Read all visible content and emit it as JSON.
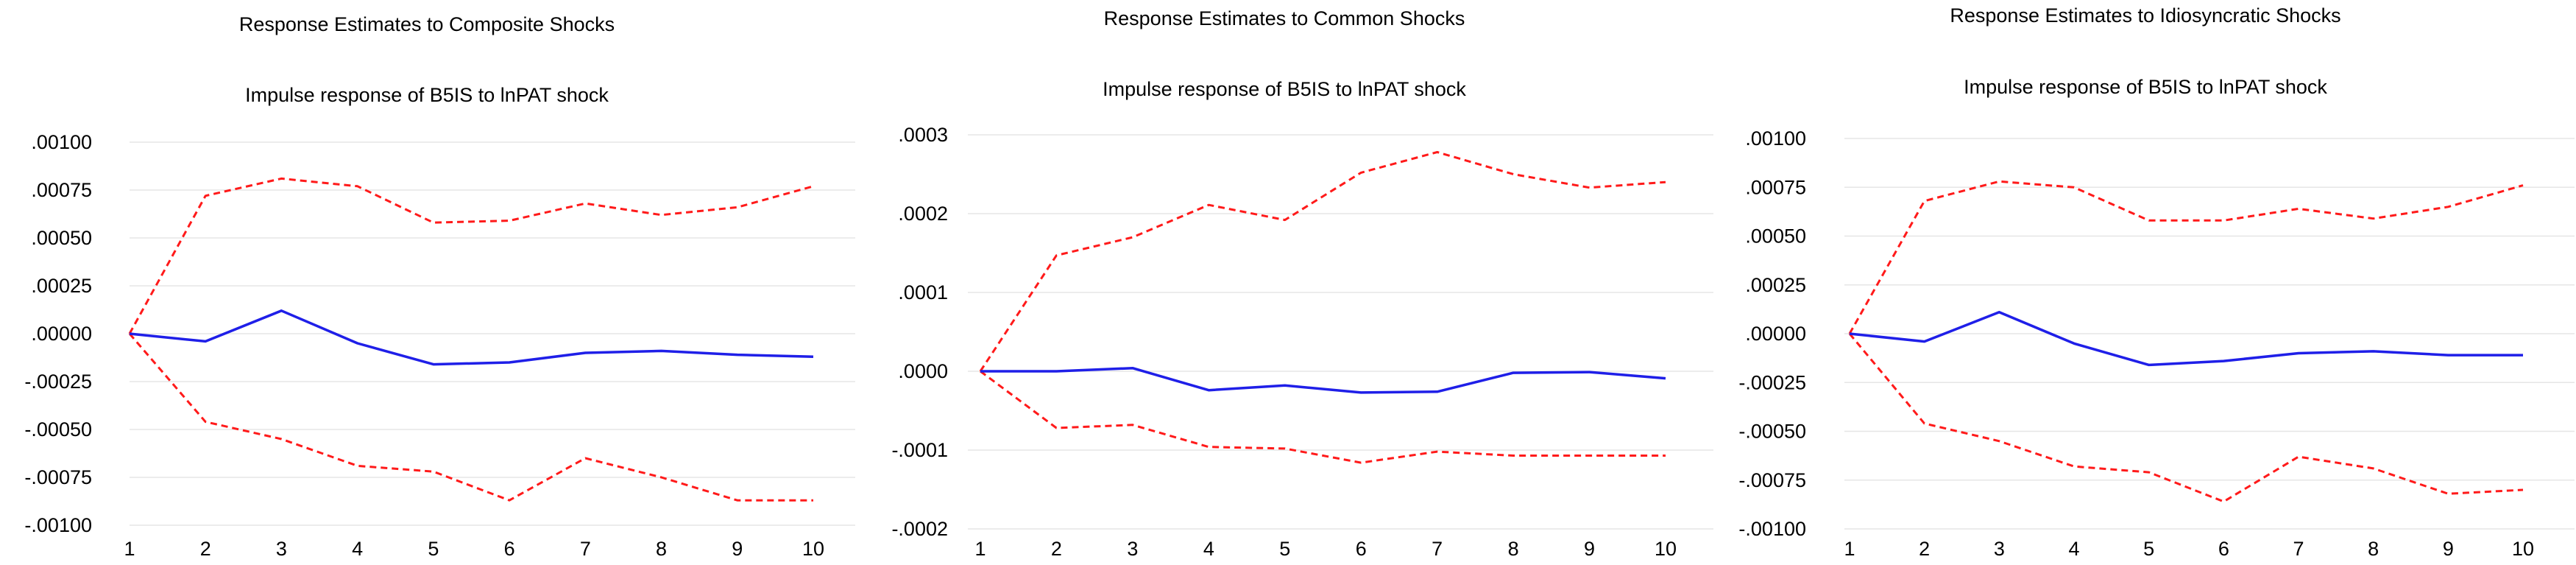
{
  "colors": {
    "irf": "#1f1fe8",
    "band": "#ff1a1a",
    "grid": "#e6e6e6"
  },
  "chart_data": [
    {
      "type": "line",
      "title": "Response Estimates to Composite Shocks",
      "subtitle": "Impulse response of B5IS to lnPAT shock",
      "x": [
        1,
        2,
        3,
        4,
        5,
        6,
        7,
        8,
        9,
        10
      ],
      "ylim": [
        -0.001,
        0.001
      ],
      "yticks": [
        0.001,
        0.00075,
        0.0005,
        0.00025,
        0,
        -0.00025,
        -0.0005,
        -0.00075,
        -0.001
      ],
      "ytick_labels": [
        ".00100",
        ".00075",
        ".00050",
        ".00025",
        ".00000",
        "-.00025",
        "-.00050",
        "-.00075",
        "-.00100"
      ],
      "series": [
        {
          "role": "irf",
          "style": "solid",
          "values": [
            0,
            -4e-05,
            0.00012,
            -5e-05,
            -0.00016,
            -0.00015,
            -0.0001,
            -9e-05,
            -0.00011,
            -0.00012
          ]
        },
        {
          "role": "upper",
          "style": "dashed",
          "values": [
            0,
            0.00072,
            0.00081,
            0.00077,
            0.00058,
            0.00059,
            0.00068,
            0.00062,
            0.00066,
            0.00077
          ]
        },
        {
          "role": "lower",
          "style": "dashed",
          "values": [
            0,
            -0.00046,
            -0.00055,
            -0.00069,
            -0.00072,
            -0.00087,
            -0.00065,
            -0.00075,
            -0.00087,
            -0.00087
          ]
        }
      ]
    },
    {
      "type": "line",
      "title": "Response Estimates to Common Shocks",
      "subtitle": "Impulse response of B5IS to lnPAT shock",
      "x": [
        1,
        2,
        3,
        4,
        5,
        6,
        7,
        8,
        9,
        10
      ],
      "ylim": [
        -0.0002,
        0.0003
      ],
      "yticks": [
        0.0003,
        0.0002,
        0.0001,
        0,
        -0.0001,
        -0.0002
      ],
      "ytick_labels": [
        ".0003",
        ".0002",
        ".0001",
        ".0000",
        "-.0001",
        "-.0002"
      ],
      "series": [
        {
          "role": "irf",
          "style": "solid",
          "values": [
            0,
            0,
            4e-06,
            -2.4e-05,
            -1.8e-05,
            -2.7e-05,
            -2.6e-05,
            -2e-06,
            -1e-06,
            -9e-06
          ]
        },
        {
          "role": "upper",
          "style": "dashed",
          "values": [
            0,
            0.000147,
            0.00017,
            0.000211,
            0.000192,
            0.000252,
            0.000278,
            0.00025,
            0.000233,
            0.00024
          ]
        },
        {
          "role": "lower",
          "style": "dashed",
          "values": [
            0,
            -7.2e-05,
            -6.8e-05,
            -9.6e-05,
            -9.8e-05,
            -0.000116,
            -0.000102,
            -0.000107,
            -0.000107,
            -0.000107
          ]
        }
      ]
    },
    {
      "type": "line",
      "title": "Response Estimates to Idiosyncratic Shocks",
      "subtitle": "Impulse response of B5IS to lnPAT shock",
      "x": [
        1,
        2,
        3,
        4,
        5,
        6,
        7,
        8,
        9,
        10
      ],
      "ylim": [
        -0.001,
        0.001
      ],
      "yticks": [
        0.001,
        0.00075,
        0.0005,
        0.00025,
        0,
        -0.00025,
        -0.0005,
        -0.00075,
        -0.001
      ],
      "ytick_labels": [
        ".00100",
        ".00075",
        ".00050",
        ".00025",
        ".00000",
        "-.00025",
        "-.00050",
        "-.00075",
        "-.00100"
      ],
      "series": [
        {
          "role": "irf",
          "style": "solid",
          "values": [
            0,
            -4e-05,
            0.00011,
            -5e-05,
            -0.00016,
            -0.00014,
            -0.0001,
            -9e-05,
            -0.00011,
            -0.00011
          ]
        },
        {
          "role": "upper",
          "style": "dashed",
          "values": [
            0,
            0.00068,
            0.00078,
            0.00075,
            0.00058,
            0.00058,
            0.00064,
            0.00059,
            0.00065,
            0.00076
          ]
        },
        {
          "role": "lower",
          "style": "dashed",
          "values": [
            0,
            -0.00046,
            -0.00055,
            -0.00068,
            -0.00071,
            -0.00086,
            -0.00063,
            -0.00069,
            -0.00082,
            -0.0008
          ]
        }
      ]
    }
  ]
}
